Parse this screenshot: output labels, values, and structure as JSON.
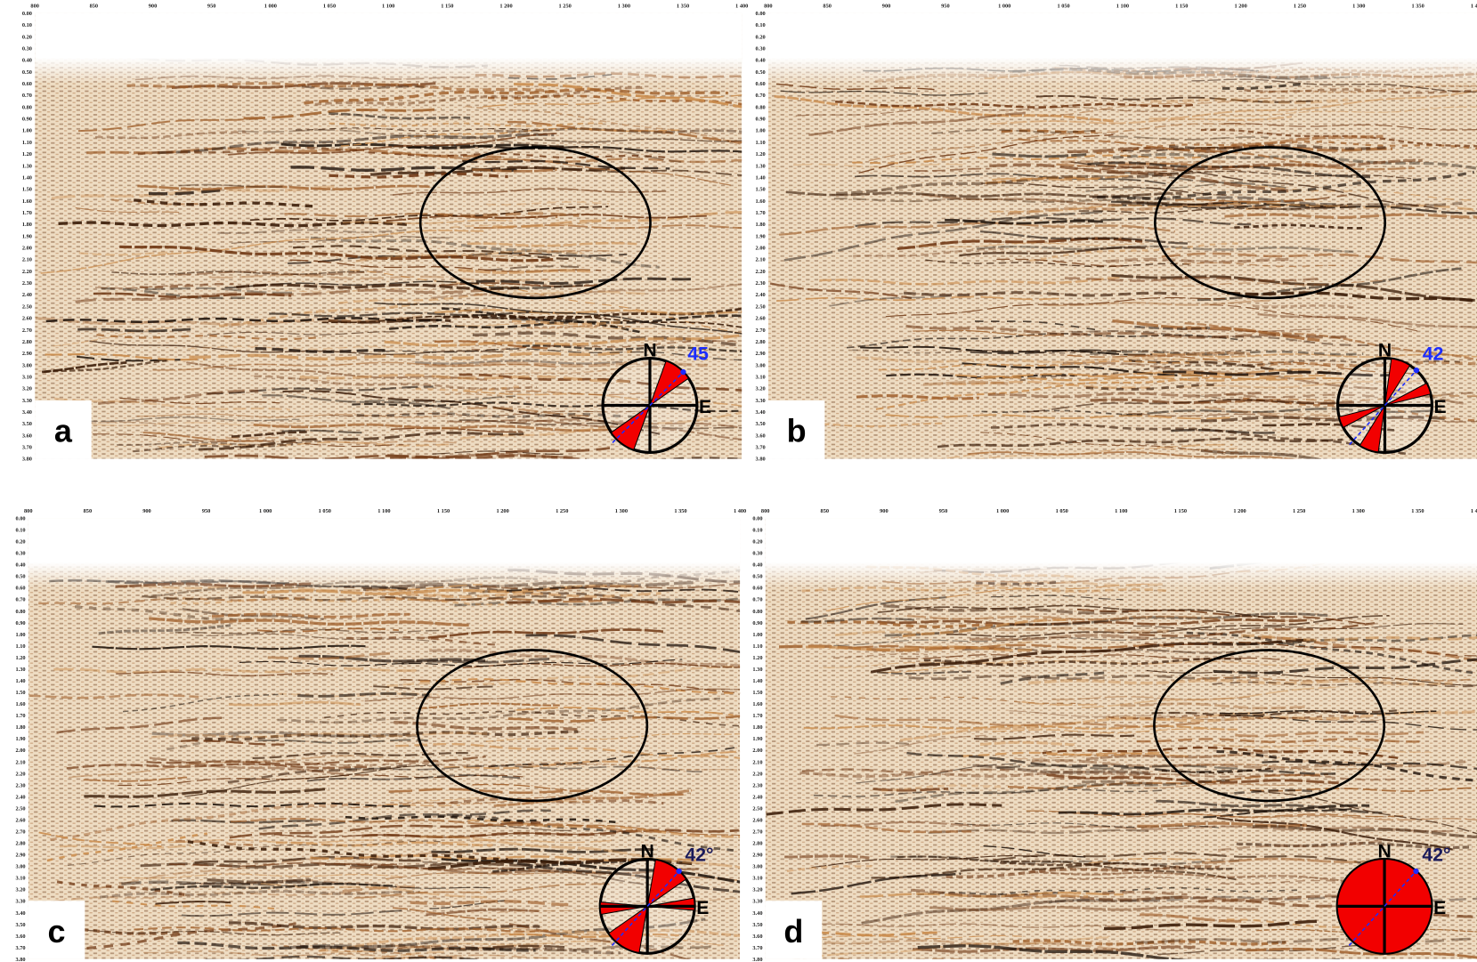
{
  "axes": {
    "x_ticks": [
      "800",
      "850",
      "900",
      "950",
      "1 000",
      "1 050",
      "1 100",
      "1 150",
      "1 200",
      "1 250",
      "1 300",
      "1 350",
      "1 400"
    ],
    "y_ticks": [
      "0.00",
      "0.10",
      "0.20",
      "0.30",
      "0.40",
      "0.50",
      "0.60",
      "0.70",
      "0.80",
      "0.90",
      "1.00",
      "1.10",
      "1.20",
      "1.30",
      "1.40",
      "1.50",
      "1.60",
      "1.70",
      "1.80",
      "1.90",
      "2.00",
      "2.10",
      "2.20",
      "2.30",
      "2.40",
      "2.50",
      "2.60",
      "2.70",
      "2.80",
      "2.90",
      "3.00",
      "3.10",
      "3.20",
      "3.30",
      "3.40",
      "3.50",
      "3.60",
      "3.70",
      "3.80"
    ]
  },
  "panels": [
    {
      "label": "a",
      "compass": {
        "north": "N",
        "east": "E",
        "angle": "45"
      }
    },
    {
      "label": "b",
      "compass": {
        "north": "N",
        "east": "E",
        "angle": "42"
      }
    },
    {
      "label": "c",
      "compass": {
        "north": "N",
        "east": "E",
        "angle": "42°"
      }
    },
    {
      "label": "d",
      "compass": {
        "north": "N",
        "east": "E",
        "angle": "42°"
      }
    }
  ]
}
